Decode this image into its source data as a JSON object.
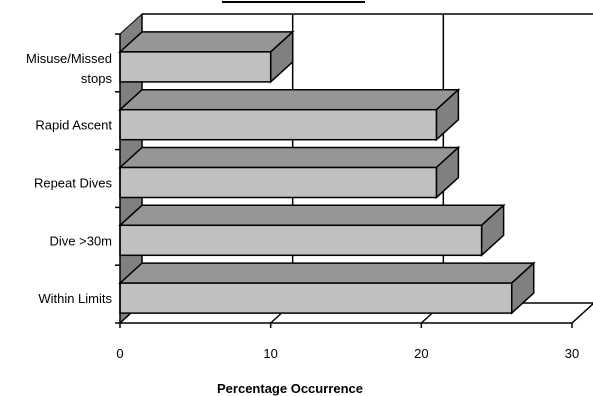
{
  "chart_data": {
    "type": "bar",
    "orientation": "horizontal",
    "three_d": true,
    "categories": [
      "Within Limits",
      "Dive >30m",
      "Repeat Dives",
      "Rapid Ascent",
      "Misuse/Missed stops"
    ],
    "category_lines": [
      [
        "Within Limits"
      ],
      [
        "Dive >30m"
      ],
      [
        "Repeat Dives"
      ],
      [
        "Rapid Ascent"
      ],
      [
        "Misuse/Missed",
        "stops"
      ]
    ],
    "values": [
      26,
      24,
      21,
      21,
      10
    ],
    "xlim": [
      0,
      30
    ],
    "xticks": [
      "0",
      "10",
      "20",
      "30"
    ],
    "xlabel": "Percentage Occurrence",
    "grid": true,
    "colors": {
      "bar_front": "#c0c0c0",
      "bar_top": "#969696",
      "bar_side": "#808080",
      "floor": "#ffffff",
      "wall_shade": "#808080",
      "outline": "#000000"
    }
  }
}
